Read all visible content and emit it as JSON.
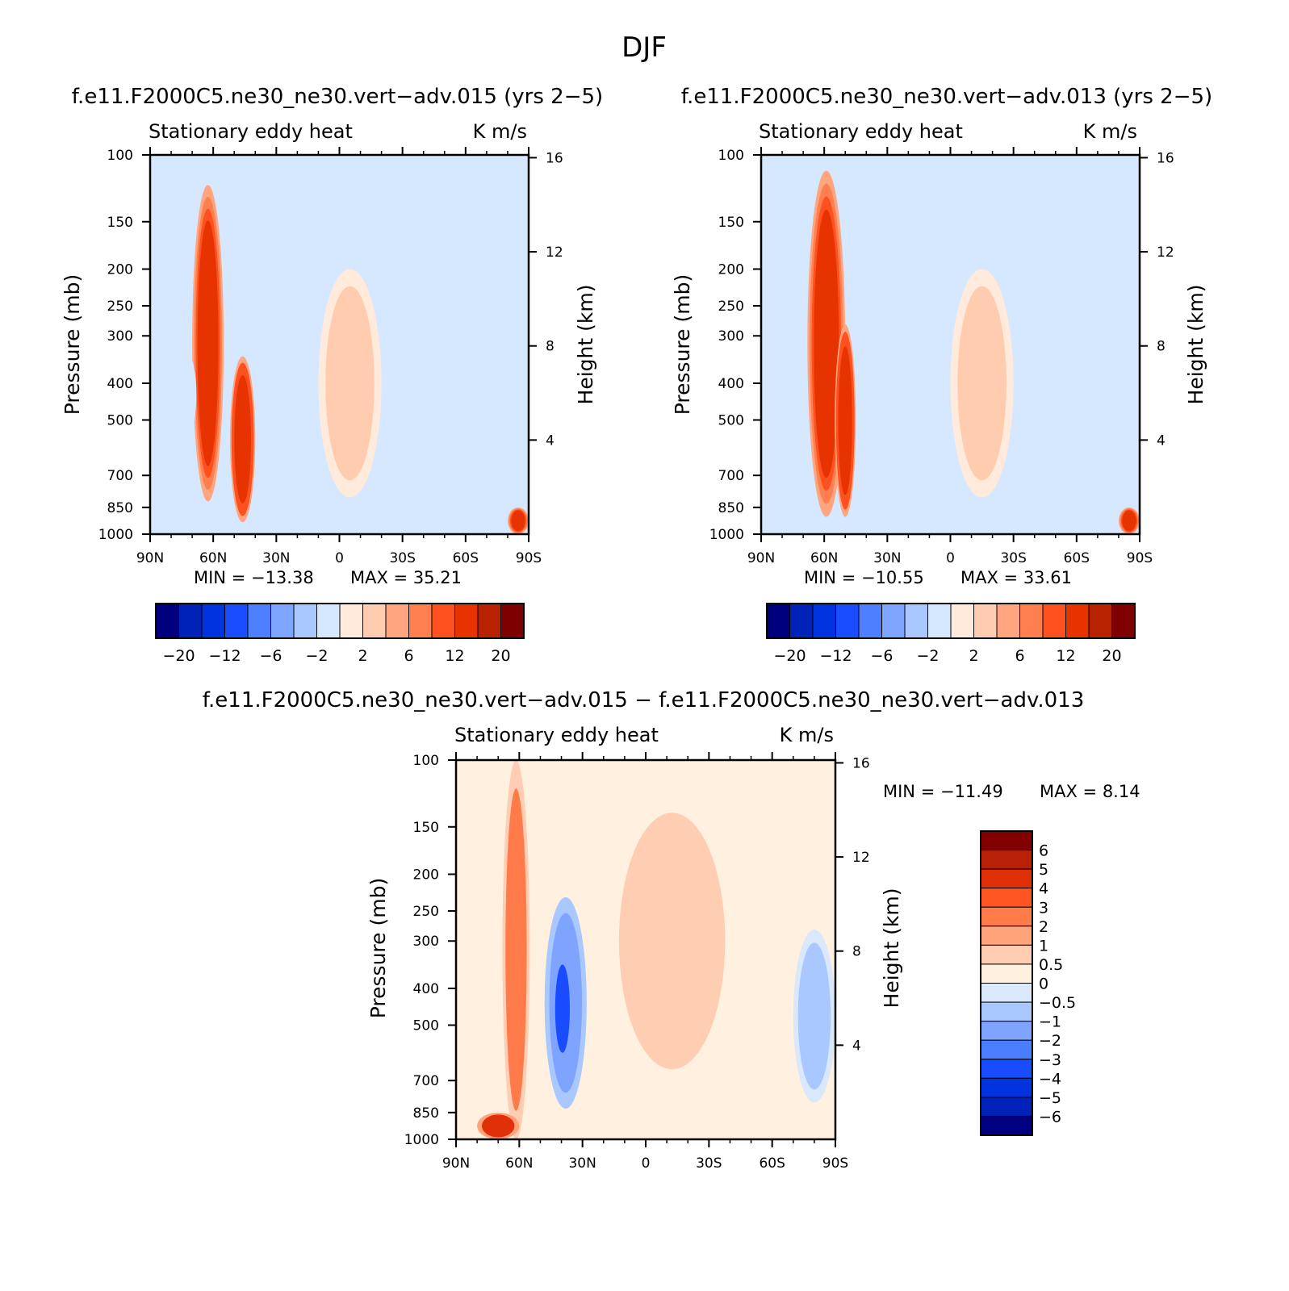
{
  "figure": {
    "title": "DJF"
  },
  "palette": {
    "diverging16": [
      "#00007f",
      "#0022b8",
      "#0033e0",
      "#1a4dff",
      "#4d7fff",
      "#7fa6ff",
      "#a8c8ff",
      "#d6e8ff",
      "#ffeadb",
      "#ffccb0",
      "#ffa680",
      "#ff7f50",
      "#ff5020",
      "#e63300",
      "#b82200",
      "#7f0000"
    ],
    "difference16": [
      "#000080",
      "#0022b8",
      "#0033dd",
      "#1a4cff",
      "#4b7dff",
      "#7ea4ff",
      "#a9c8ff",
      "#d9e9fb",
      "#fff0e0",
      "#ffcdb2",
      "#ffa47a",
      "#ff7b4a",
      "#ff5522",
      "#e0300a",
      "#b82008",
      "#820000"
    ],
    "axis_color": "#000000"
  },
  "panels": {
    "p1": {
      "title": "f.e11.F2000C5.ne30_ne30.vert−adv.015 (yrs 2−5)",
      "left_label": "Stationary eddy heat",
      "right_label": "K m/s",
      "ylabel": "Pressure (mb)",
      "ylabel2": "Height (km)",
      "min_label": "MIN = −13.38",
      "max_label": "MAX = 35.21"
    },
    "p2": {
      "title": "f.e11.F2000C5.ne30_ne30.vert−adv.013 (yrs 2−5)",
      "left_label": "Stationary eddy heat",
      "right_label": "K m/s",
      "ylabel": "Pressure (mb)",
      "ylabel2": "Height (km)",
      "min_label": "MIN = −10.55",
      "max_label": "MAX = 33.61"
    },
    "p3": {
      "title": "f.e11.F2000C5.ne30_ne30.vert−adv.015 − f.e11.F2000C5.ne30_ne30.vert−adv.013",
      "left_label": "Stationary eddy heat",
      "right_label": "K m/s",
      "ylabel": "Pressure (mb)",
      "ylabel2": "Height (km)",
      "min_label": "MIN = −11.49",
      "max_label": "MAX = 8.14"
    }
  },
  "chart_data": [
    {
      "type": "heatmap",
      "id": "p1",
      "title": "f.e11.F2000C5.ne30_ne30.vert−adv.015 (yrs 2−5)",
      "variable": "Stationary eddy heat",
      "units": "K m/s",
      "x_ticks": [
        "90N",
        "60N",
        "30N",
        "0",
        "30S",
        "60S",
        "90S"
      ],
      "x_values": [
        90,
        60,
        30,
        0,
        -30,
        -60,
        -90
      ],
      "y_ticks": [
        100,
        150,
        200,
        250,
        300,
        400,
        500,
        700,
        850,
        1000
      ],
      "ylim": [
        1000,
        100
      ],
      "y2_ticks": [
        16,
        12,
        8,
        4
      ],
      "min": -13.38,
      "max": 35.21,
      "colorbar_labels": [
        "−20",
        "−12",
        "−6",
        "−2",
        "2",
        "6",
        "12",
        "20"
      ],
      "features": [
        {
          "lat": [
            70,
            55
          ],
          "p": [
            120,
            820
          ],
          "level": 12
        },
        {
          "lat": [
            52,
            40
          ],
          "p": [
            340,
            930
          ],
          "level": 13
        },
        {
          "lat": [
            78,
            68
          ],
          "p": [
            330,
            560
          ],
          "level": -2
        },
        {
          "lat": [
            20,
            0
          ],
          "p": [
            900,
            1000
          ],
          "level": -2
        },
        {
          "lat": [
            10,
            -20
          ],
          "p": [
            200,
            800
          ],
          "level": 2
        },
        {
          "lat": [
            -80,
            -90
          ],
          "p": [
            850,
            1000
          ],
          "level": 12
        }
      ]
    },
    {
      "type": "heatmap",
      "id": "p2",
      "title": "f.e11.F2000C5.ne30_ne30.vert−adv.013 (yrs 2−5)",
      "variable": "Stationary eddy heat",
      "units": "K m/s",
      "x_ticks": [
        "90N",
        "60N",
        "30N",
        "0",
        "30S",
        "60S",
        "90S"
      ],
      "x_values": [
        90,
        60,
        30,
        0,
        -30,
        -60,
        -90
      ],
      "y_ticks": [
        100,
        150,
        200,
        250,
        300,
        400,
        500,
        700,
        850,
        1000
      ],
      "ylim": [
        1000,
        100
      ],
      "y2_ticks": [
        16,
        12,
        8,
        4
      ],
      "min": -10.55,
      "max": 33.61,
      "colorbar_labels": [
        "−20",
        "−12",
        "−6",
        "−2",
        "2",
        "6",
        "12",
        "20"
      ],
      "features": [
        {
          "lat": [
            68,
            50
          ],
          "p": [
            110,
            900
          ],
          "level": 12
        },
        {
          "lat": [
            55,
            45
          ],
          "p": [
            280,
            900
          ],
          "level": 13
        },
        {
          "lat": [
            80,
            68
          ],
          "p": [
            250,
            700
          ],
          "level": -2
        },
        {
          "lat": [
            15,
            -10
          ],
          "p": [
            900,
            1000
          ],
          "level": -2
        },
        {
          "lat": [
            0,
            -30
          ],
          "p": [
            200,
            800
          ],
          "level": 2
        },
        {
          "lat": [
            -80,
            -90
          ],
          "p": [
            850,
            1000
          ],
          "level": 12
        }
      ]
    },
    {
      "type": "heatmap",
      "id": "p3",
      "title": "f.e11.F2000C5.ne30_ne30.vert−adv.015 − f.e11.F2000C5.ne30_ne30.vert−adv.013",
      "variable": "Stationary eddy heat",
      "units": "K m/s",
      "x_ticks": [
        "90N",
        "60N",
        "30N",
        "0",
        "30S",
        "60S",
        "90S"
      ],
      "x_values": [
        90,
        60,
        30,
        0,
        -30,
        -60,
        -90
      ],
      "y_ticks": [
        100,
        150,
        200,
        250,
        300,
        400,
        500,
        700,
        850,
        1000
      ],
      "ylim": [
        1000,
        100
      ],
      "y2_ticks": [
        16,
        12,
        8,
        4
      ],
      "min": -11.49,
      "max": 8.14,
      "colorbar_levels": [
        "6",
        "5",
        "4",
        "3",
        "2",
        "1",
        "0.5",
        "0",
        "−0.5",
        "−1",
        "−2",
        "−3",
        "−4",
        "−5",
        "−6"
      ],
      "features": [
        {
          "lat": [
            68,
            55
          ],
          "p": [
            100,
            1000
          ],
          "level": 2
        },
        {
          "lat": [
            80,
            60
          ],
          "p": [
            850,
            1000
          ],
          "level": 4
        },
        {
          "lat": [
            48,
            28
          ],
          "p": [
            230,
            830
          ],
          "level": -2
        },
        {
          "lat": [
            44,
            35
          ],
          "p": [
            330,
            620
          ],
          "level": -4
        },
        {
          "lat": [
            20,
            -45
          ],
          "p": [
            120,
            750
          ],
          "level": 0.5
        },
        {
          "lat": [
            -70,
            -90
          ],
          "p": [
            280,
            800
          ],
          "level": -1
        }
      ]
    }
  ]
}
